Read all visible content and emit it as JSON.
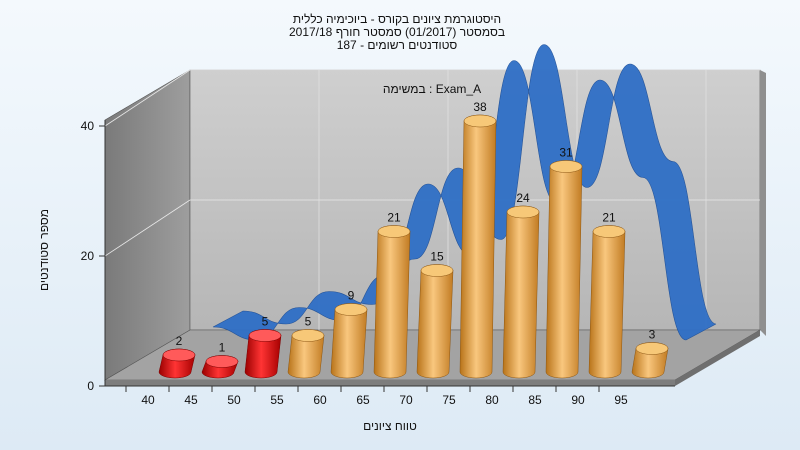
{
  "chart_data": {
    "type": "bar",
    "title_lines": [
      "היסטוגרמת ציונים בקורס - ביוכימיה כללית",
      "בסמסטר  (01/2017)  סמסטר חורף 2017/18",
      "סטודנטים רשומים - 187"
    ],
    "annotation": "במשימה : Exam_A",
    "xlabel": "טווח ציונים",
    "ylabel": "מספר סטודנטים",
    "categories": [
      "40",
      "45",
      "50",
      "55",
      "60",
      "65",
      "70",
      "75",
      "80",
      "85",
      "90",
      "95"
    ],
    "bars": [
      {
        "category": "40",
        "value": 2,
        "color": "red"
      },
      {
        "category": "45",
        "value": 1,
        "color": "red"
      },
      {
        "category": "50",
        "value": 5,
        "color": "red"
      },
      {
        "category": "55",
        "value": 5,
        "color": "orange"
      },
      {
        "category": "60",
        "value": 9,
        "color": "orange"
      },
      {
        "category": "65",
        "value": 21,
        "color": "orange"
      },
      {
        "category": "70",
        "value": 15,
        "color": "orange"
      },
      {
        "category": "75",
        "value": 38,
        "color": "orange"
      },
      {
        "category": "80",
        "value": 24,
        "color": "orange"
      },
      {
        "category": "85",
        "value": 31,
        "color": "orange"
      },
      {
        "category": "90",
        "value": 21,
        "color": "orange"
      },
      {
        "category": "95",
        "value": 3,
        "color": "orange"
      }
    ],
    "curve": {
      "type": "area-ribbon",
      "x": [
        45,
        50,
        55,
        60,
        65,
        70,
        75,
        80,
        85,
        90,
        95,
        100
      ],
      "values": [
        2,
        0,
        5,
        3,
        10,
        24,
        13,
        43,
        21,
        40,
        25,
        0
      ]
    },
    "ylim": [
      0,
      40
    ],
    "yticks": [
      0,
      20,
      40
    ],
    "grid": true,
    "colors": {
      "red": "#e01010",
      "orange": "#e9a94b",
      "curve": "#2f6fc6",
      "wall": "#bdbdbd",
      "side_wall": "#8a8a8a",
      "floor": "#9a9a9a"
    }
  }
}
